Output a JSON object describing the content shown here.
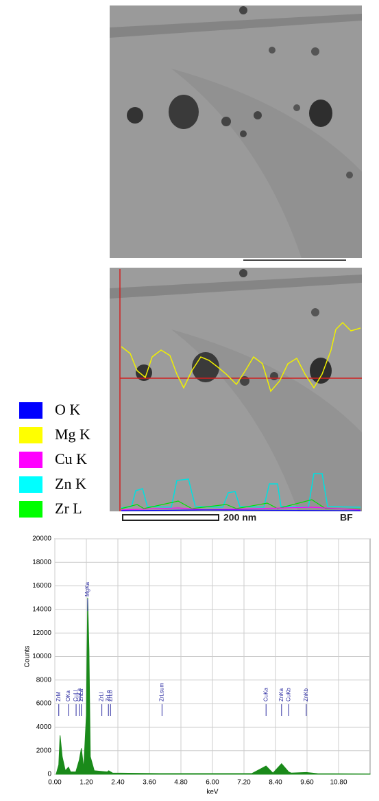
{
  "legend": [
    {
      "label": "O K",
      "color": "#0000ff"
    },
    {
      "label": "Mg K",
      "color": "#ffff00"
    },
    {
      "label": "Cu K",
      "color": "#ff00ff"
    },
    {
      "label": "Zn K",
      "color": "#00ffff"
    },
    {
      "label": "Zr L",
      "color": "#00ff00"
    }
  ],
  "scale_bar": "200 nm",
  "mode": "BF",
  "chart_data": {
    "type": "area",
    "color": "#1a8a1a",
    "xlabel": "keV",
    "ylabel": "Counts",
    "x": [
      0.05,
      0.15,
      0.2,
      0.28,
      0.4,
      0.52,
      0.6,
      0.8,
      0.93,
      1.01,
      1.1,
      1.2,
      1.25,
      1.3,
      1.35,
      1.5,
      2.0,
      2.05,
      2.2,
      4.0,
      7.5,
      8.04,
      8.3,
      8.63,
      8.9,
      9.0,
      9.57,
      10.0,
      12.0
    ],
    "values": [
      0,
      800,
      3300,
      1500,
      300,
      600,
      200,
      200,
      1200,
      2200,
      500,
      5000,
      15000,
      10500,
      1500,
      300,
      200,
      300,
      100,
      60,
      60,
      700,
      100,
      900,
      200,
      100,
      150,
      50,
      30
    ],
    "xlim": [
      0,
      12
    ],
    "ylim": [
      0,
      20000
    ],
    "xticks": [
      {
        "value": 0,
        "label": "0.00"
      },
      {
        "value": 1.2,
        "label": "1.20"
      },
      {
        "value": 2.4,
        "label": "2.40"
      },
      {
        "value": 3.6,
        "label": "3.60"
      },
      {
        "value": 4.8,
        "label": "4.80"
      },
      {
        "value": 6,
        "label": "6.00"
      },
      {
        "value": 7.2,
        "label": "7.20"
      },
      {
        "value": 8.4,
        "label": "8.40"
      },
      {
        "value": 9.6,
        "label": "9.60"
      },
      {
        "value": 10.8,
        "label": "10.80"
      }
    ],
    "yticks": [
      0,
      2000,
      4000,
      6000,
      8000,
      10000,
      12000,
      14000,
      16000,
      18000,
      20000
    ],
    "grid": true,
    "peak_labels": [
      {
        "label": "ZrM",
        "x": 0.15
      },
      {
        "label": "OKa",
        "x": 0.52
      },
      {
        "label": "CuLl",
        "x": 0.81
      },
      {
        "label": "CuLa",
        "x": 0.93
      },
      {
        "label": "ZnLa",
        "x": 1.01
      },
      {
        "label": "MgKa",
        "x": 1.25
      },
      {
        "label": "ZrLl",
        "x": 1.79
      },
      {
        "label": "ZrLa",
        "x": 2.04
      },
      {
        "label": "ZrLb",
        "x": 2.12
      },
      {
        "label": "ZrLsum",
        "x": 4.08
      },
      {
        "label": "CuKa",
        "x": 8.04
      },
      {
        "label": "ZnKa",
        "x": 8.63
      },
      {
        "label": "CuKb",
        "x": 8.9
      },
      {
        "label": "ZnKb",
        "x": 9.57
      }
    ]
  }
}
